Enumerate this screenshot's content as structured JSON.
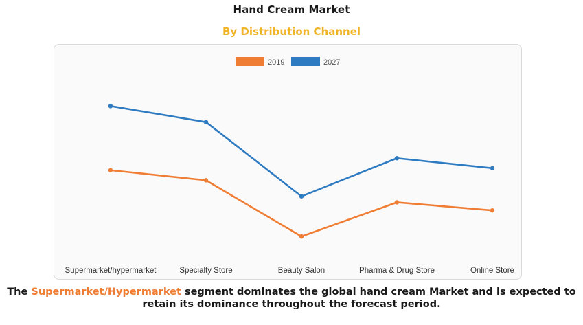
{
  "header": {
    "title": "Hand Cream Market",
    "subtitle": "By Distribution Channel"
  },
  "caption": {
    "prefix": "The ",
    "highlight": "Supermarket/Hypermarket",
    "suffix": " segment dominates the global hand cream Market and is expected to retain its dominance throughout the forecast period."
  },
  "colors": {
    "series_2019": "#f07d34",
    "series_2027": "#2f7bc1",
    "subtitle": "#f0b429"
  },
  "chart_data": {
    "type": "line",
    "title": "Hand Cream Market",
    "subtitle": "By Distribution Channel",
    "xlabel": "",
    "ylabel": "",
    "grid": false,
    "legend": "top-center",
    "categories": [
      "Supermarket/hypermarket",
      "Specialty Store",
      "Beauty Salon",
      "Pharma & Drug Store",
      "Online Store"
    ],
    "ylim": [
      0,
      10
    ],
    "series": [
      {
        "name": "2019",
        "values": [
          4.7,
          4.2,
          1.4,
          3.1,
          2.7
        ]
      },
      {
        "name": "2027",
        "values": [
          7.9,
          7.1,
          3.4,
          5.3,
          4.8
        ]
      }
    ]
  }
}
